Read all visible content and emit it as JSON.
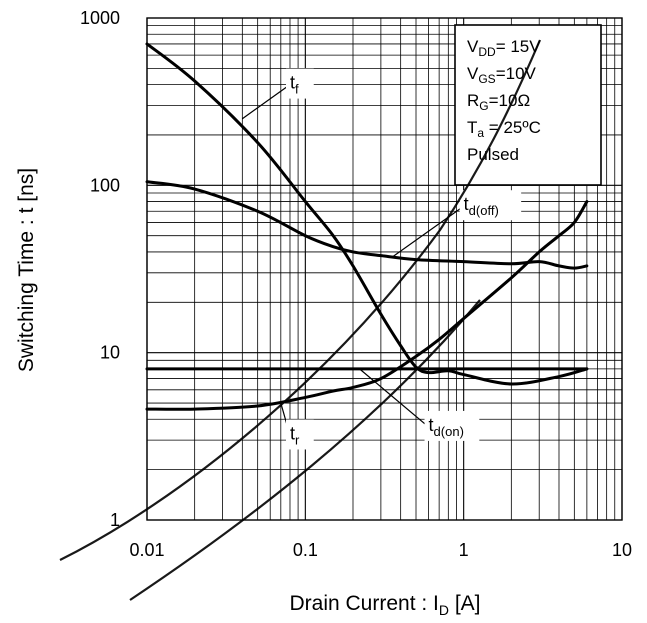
{
  "chart_data": {
    "type": "line",
    "xscale": "log",
    "yscale": "log",
    "xlim": [
      0.01,
      10
    ],
    "ylim": [
      1,
      1000
    ],
    "xticks": [
      "0.01",
      "0.1",
      "1",
      "10"
    ],
    "yticks": [
      "1",
      "10",
      "100",
      "1000"
    ],
    "xlabel": {
      "main": "Drain Current : I",
      "sub": "D",
      "unit": " [A]"
    },
    "ylabel": "Switching Time : t [ns]",
    "grid": true,
    "conditions": [
      {
        "main": "V",
        "sub": "DD",
        "rest": "= 15V"
      },
      {
        "main": "V",
        "sub": "GS",
        "rest": "=10V"
      },
      {
        "main": "R",
        "sub": "G",
        "rest": "=10Ω"
      },
      {
        "main": "T",
        "sub": "a",
        "rest": " = 25ºC"
      },
      {
        "main": "Pulsed",
        "sub": "",
        "rest": ""
      }
    ],
    "series": [
      {
        "name": "tf",
        "label_main": "t",
        "label_sub": "f",
        "x": [
          0.01,
          0.02,
          0.05,
          0.1,
          0.15,
          0.2,
          0.3,
          0.4,
          0.5,
          0.6,
          0.8,
          1,
          2,
          4,
          6
        ],
        "y": [
          700,
          420,
          180,
          80,
          50,
          33,
          17,
          11,
          8.2,
          7.6,
          7.8,
          7.4,
          6.5,
          7.2,
          8
        ]
      },
      {
        "name": "td(off)",
        "label_main": "t",
        "label_sub": "d(off)",
        "x": [
          0.01,
          0.02,
          0.05,
          0.1,
          0.15,
          0.2,
          0.3,
          0.5,
          1,
          2,
          3,
          4,
          5,
          6
        ],
        "y": [
          105,
          95,
          70,
          50,
          43,
          40,
          38,
          36,
          35,
          34,
          35,
          33,
          32,
          33
        ]
      },
      {
        "name": "tr",
        "label_main": "t",
        "label_sub": "r",
        "x": [
          0.01,
          0.02,
          0.05,
          0.1,
          0.15,
          0.2,
          0.3,
          0.5,
          0.7,
          1,
          2,
          3,
          4,
          5,
          6
        ],
        "y": [
          4.6,
          4.6,
          4.8,
          5.4,
          5.9,
          6.2,
          7.0,
          9.5,
          12,
          16,
          28,
          40,
          50,
          60,
          80
        ]
      },
      {
        "name": "td(on)",
        "label_main": "t",
        "label_sub": "d(on)",
        "x": [
          0.01,
          6
        ],
        "y": [
          8,
          8
        ]
      }
    ],
    "annotations": [
      {
        "series": "tf",
        "at_x": 0.04,
        "at_y": 250,
        "text_x": 0.08,
        "text_y": 400
      },
      {
        "series": "td(off)",
        "at_x": 0.35,
        "at_y": 37,
        "text_x": 1.0,
        "text_y": 75
      },
      {
        "series": "tr",
        "at_x": 0.07,
        "at_y": 5.0,
        "text_x": 0.08,
        "text_y": 3.2
      },
      {
        "series": "td(on)",
        "at_x": 0.22,
        "at_y": 8,
        "text_x": 0.6,
        "text_y": 3.6
      }
    ]
  }
}
